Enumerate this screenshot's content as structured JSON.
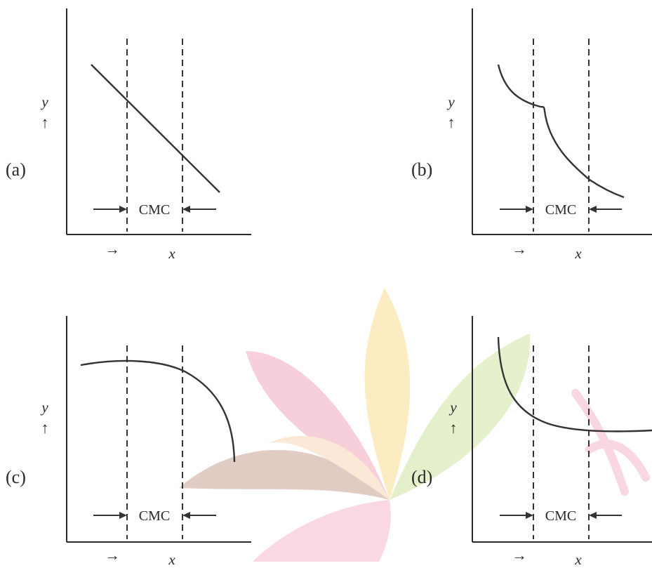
{
  "panels": [
    {
      "id": "a",
      "label": "(a)",
      "ylabel": "y",
      "xlabel": "x",
      "band_label": "CMC",
      "y_arrow": "↑",
      "x_arrow": "→"
    },
    {
      "id": "b",
      "label": "(b)",
      "ylabel": "y",
      "xlabel": "x",
      "band_label": "CMC",
      "y_arrow": "↑",
      "x_arrow": "→"
    },
    {
      "id": "c",
      "label": "(c)",
      "ylabel": "y",
      "xlabel": "x",
      "band_label": "CMC",
      "y_arrow": "↑",
      "x_arrow": "→"
    },
    {
      "id": "d",
      "label": "(d)",
      "ylabel": "y",
      "xlabel": "x",
      "band_label": "CMC",
      "y_arrow": "↑",
      "x_arrow": "→"
    }
  ],
  "colors": {
    "ink": "#2a2a2a",
    "watermark_pink": "#f2b6c6",
    "watermark_yellow": "#f8e4a0",
    "watermark_green": "#d6e8b0",
    "watermark_brown": "#d8b8a8"
  }
}
